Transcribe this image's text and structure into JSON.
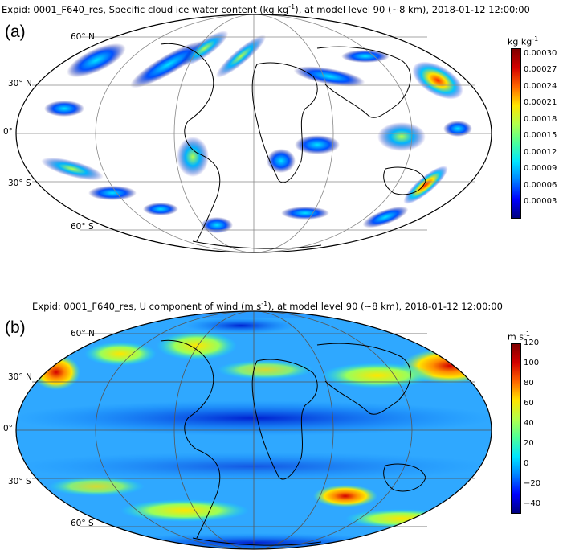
{
  "panel_a": {
    "letter": "(a)",
    "title_text": "Expid: 0001_F640_res, Specific cloud ice water content (kg kg",
    "title_sup": "-1",
    "title_tail": "), at model level 90 (~8 km), 2018-01-12 12:00:00",
    "lat_labels": [
      "60° N",
      "30° N",
      "0°",
      "30° S",
      "60° S"
    ],
    "colorbar": {
      "unit": "kg kg",
      "unit_sup": "-1",
      "ticks": [
        "0.00030",
        "0.00027",
        "0.00024",
        "0.00021",
        "0.00018",
        "0.00015",
        "0.00012",
        "0.00009",
        "0.00006",
        "0.00003"
      ],
      "vmin": 0.0,
      "vmax": 0.00031,
      "colors": [
        "#00007f",
        "#0000ff",
        "#007fff",
        "#00e5ff",
        "#4cff9a",
        "#b2ff4c",
        "#ffe500",
        "#ff6600",
        "#d40000",
        "#7f0000"
      ]
    }
  },
  "panel_b": {
    "letter": "(b)",
    "title_text": "Expid: 0001_F640_res, U component of wind (m s",
    "title_sup": "-1",
    "title_tail": "), at model level 90 (~8 km), 2018-01-12 12:00:00",
    "lat_labels": [
      "60° N",
      "30° N",
      "0°",
      "30° S",
      "60° S"
    ],
    "colorbar": {
      "unit": "m s",
      "unit_sup": "-1",
      "ticks": [
        "120",
        "100",
        "80",
        "60",
        "40",
        "20",
        "0",
        "−20",
        "−40"
      ],
      "vmin": -50,
      "vmax": 120,
      "colors": [
        "#00007f",
        "#0000ff",
        "#007fff",
        "#00e5ff",
        "#4cff9a",
        "#b2ff4c",
        "#ffe500",
        "#ff6600",
        "#d40000",
        "#7f0000"
      ]
    }
  }
}
